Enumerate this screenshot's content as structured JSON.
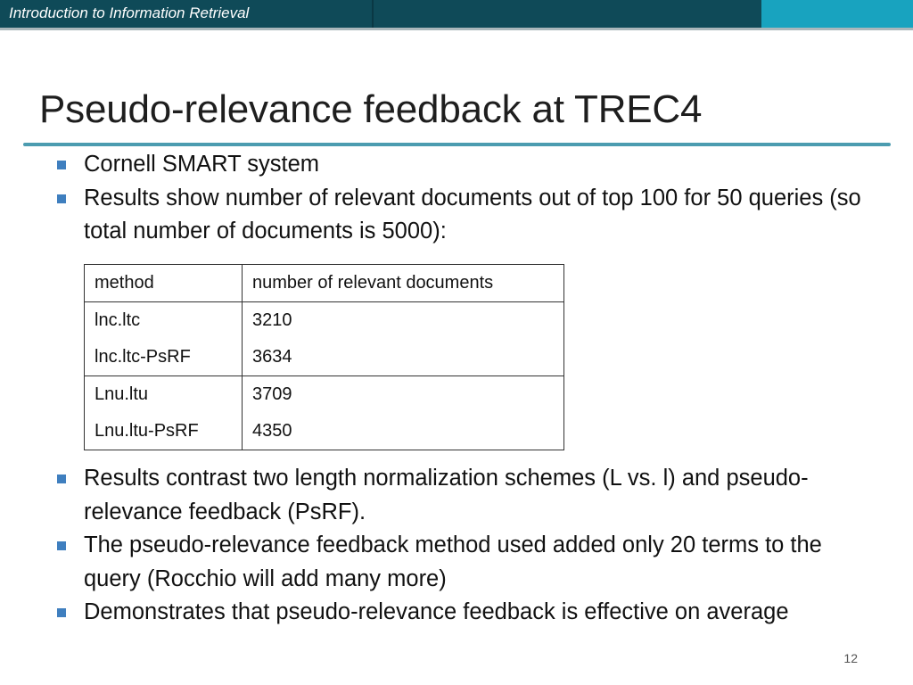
{
  "header": {
    "course_title": "Introduction to Information Retrieval",
    "colors": {
      "dark_bar": "#0f4a58",
      "light_bar": "#18a3bf",
      "accent_rule": "#4c9cb0",
      "bullet": "#3f7fbf"
    }
  },
  "slide": {
    "title": "Pseudo-relevance feedback at TREC4",
    "bullets_top": [
      "Cornell SMART system",
      "Results show number of relevant documents out of top 100 for 50 queries (so total number of documents is 5000):"
    ],
    "table": {
      "headers": [
        "method",
        "number of relevant documents"
      ],
      "rows": [
        [
          "lnc.ltc",
          "3210"
        ],
        [
          "lnc.ltc-PsRF",
          "3634"
        ],
        [
          "Lnu.ltu",
          "3709"
        ],
        [
          "Lnu.ltu-PsRF",
          "4350"
        ]
      ]
    },
    "bullets_bottom": [
      "Results contrast two length normalization schemes (L vs. l) and pseudo-relevance feedback (PsRF).",
      "The pseudo-relevance feedback method used added only 20 terms to the query (Rocchio will add many more)",
      "Demonstrates that pseudo-relevance feedback is effective on average"
    ],
    "page_number": "12"
  }
}
